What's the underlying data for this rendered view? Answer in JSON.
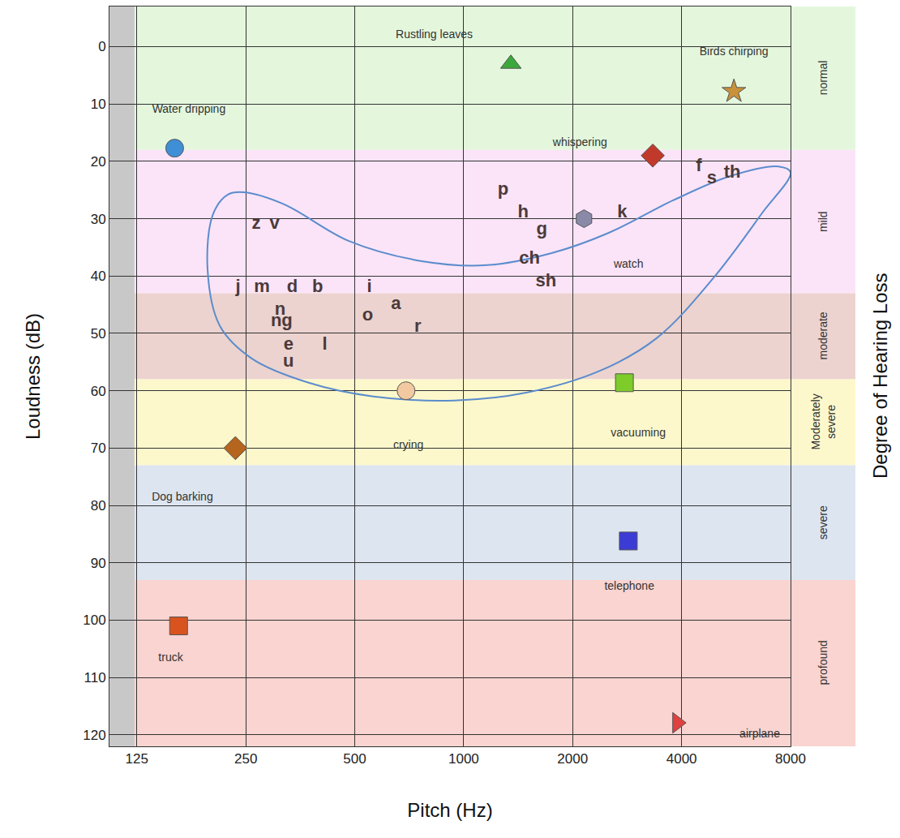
{
  "chart_data": {
    "type": "scatter",
    "xlabel": "Pitch (Hz)",
    "ylabel": "Loudness (dB)",
    "y2label": "Degree of Hearing Loss",
    "log": "x",
    "grid": true,
    "xlim": [
      105,
      8000
    ],
    "xticks": [
      125,
      250,
      500,
      1000,
      2000,
      4000,
      8000
    ],
    "ylim": [
      122,
      -7
    ],
    "yticks": [
      0,
      10,
      20,
      30,
      40,
      50,
      60,
      70,
      80,
      90,
      100,
      110,
      120
    ],
    "bands": [
      {
        "label": "normal",
        "from": -7,
        "to": 18,
        "color": "#e4f7dd"
      },
      {
        "label": "mild",
        "from": 18,
        "to": 43,
        "color": "#fbe4f8"
      },
      {
        "label": "moderate",
        "from": 43,
        "to": 58,
        "color": "#ecd3cf"
      },
      {
        "label": "Moderately severe",
        "from": 58,
        "to": 73,
        "color": "#fdf8cc"
      },
      {
        "label": "severe",
        "from": 73,
        "to": 93,
        "color": "#dde5f0"
      },
      {
        "label": "profound",
        "from": 93,
        "to": 122,
        "color": "#f9d4d0"
      }
    ],
    "curve": {
      "color": "#5b8ccc",
      "line_style": "solid",
      "x": [
        247,
        319,
        482,
        767,
        1159,
        1750,
        2509,
        3790,
        5435,
        7403,
        8000,
        6680,
        4903,
        3418,
        2383,
        1499,
        942,
        563,
        373,
        260,
        212,
        196,
        203,
        223,
        247
      ],
      "y": [
        25.4,
        27.5,
        33.9,
        37.4,
        38.1,
        36.0,
        32.5,
        26.8,
        22.6,
        20.9,
        21.9,
        29.0,
        40.3,
        50.8,
        56.5,
        60.3,
        61.7,
        61.0,
        58.6,
        54.4,
        48.7,
        38.8,
        29.2,
        25.8,
        25.4
      ]
    },
    "speech_sounds": {
      "color": "#4b3a3a",
      "labels": [
        "z",
        "v",
        "j",
        "m",
        "d",
        "b",
        "n",
        "ng",
        "e",
        "u",
        "l",
        "i",
        "o",
        "a",
        "r",
        "p",
        "h",
        "g",
        "ch",
        "sh",
        "k",
        "f",
        "s",
        "th"
      ],
      "x": [
        267,
        300,
        238,
        277,
        336,
        395,
        311,
        314,
        328,
        328,
        413,
        549,
        543,
        650,
        747,
        1284,
        1460,
        1644,
        1520,
        1688,
        2740,
        4465,
        4850,
        5520
      ],
      "y": [
        31,
        31,
        42,
        42,
        42,
        42,
        46,
        48,
        52,
        55,
        52,
        42,
        47,
        45,
        49,
        25,
        29,
        32,
        37,
        41,
        29,
        21,
        23,
        22
      ]
    },
    "sound_sources": [
      {
        "label": "Water dripping",
        "x": 159,
        "y": 17.7,
        "label_x": 174,
        "label_y": 11,
        "marker": "circle",
        "color": "#3f8fd6"
      },
      {
        "label": "Rustling leaves",
        "x": 1350,
        "y": 3,
        "label_x": 829,
        "label_y": -2,
        "marker": "triangle-up",
        "color": "#3aa83a"
      },
      {
        "label": "Birds chirping",
        "x": 5580,
        "y": 7.8,
        "label_x": 5580,
        "label_y": 1,
        "marker": "star",
        "color": "#c8913a"
      },
      {
        "label": "whispering",
        "x": 3330,
        "y": 19,
        "label_x": 2095,
        "label_y": 16.9,
        "marker": "diamond",
        "color": "#c0392b"
      },
      {
        "label": "watch",
        "x": 2150,
        "y": 30,
        "label_x": 2854,
        "label_y": 38.1,
        "marker": "hexagon",
        "color": "#8a8aa8"
      },
      {
        "label": "crying",
        "x": 693,
        "y": 60,
        "label_x": 703,
        "label_y": 69.6,
        "marker": "circle",
        "color": "#f2c9a0"
      },
      {
        "label": "vacuuming",
        "x": 2780,
        "y": 58.6,
        "label_x": 3036,
        "label_y": 67.5,
        "marker": "square",
        "color": "#7dcc2a"
      },
      {
        "label": "Dog barking",
        "x": 234,
        "y": 70,
        "label_x": 167,
        "label_y": 78.7,
        "marker": "diamond",
        "color": "#b5651d"
      },
      {
        "label": "telephone",
        "x": 2850,
        "y": 86.2,
        "label_x": 2869,
        "label_y": 94.2,
        "marker": "square",
        "color": "#3b3bd6"
      },
      {
        "label": "truck",
        "x": 163,
        "y": 101,
        "label_x": 155,
        "label_y": 106.6,
        "marker": "square",
        "color": "#d9531e"
      },
      {
        "label": "airplane",
        "x": 3889,
        "y": 117.9,
        "label_x": 6577,
        "label_y": 120,
        "marker": "triangle-right",
        "color": "#e04040"
      }
    ]
  }
}
